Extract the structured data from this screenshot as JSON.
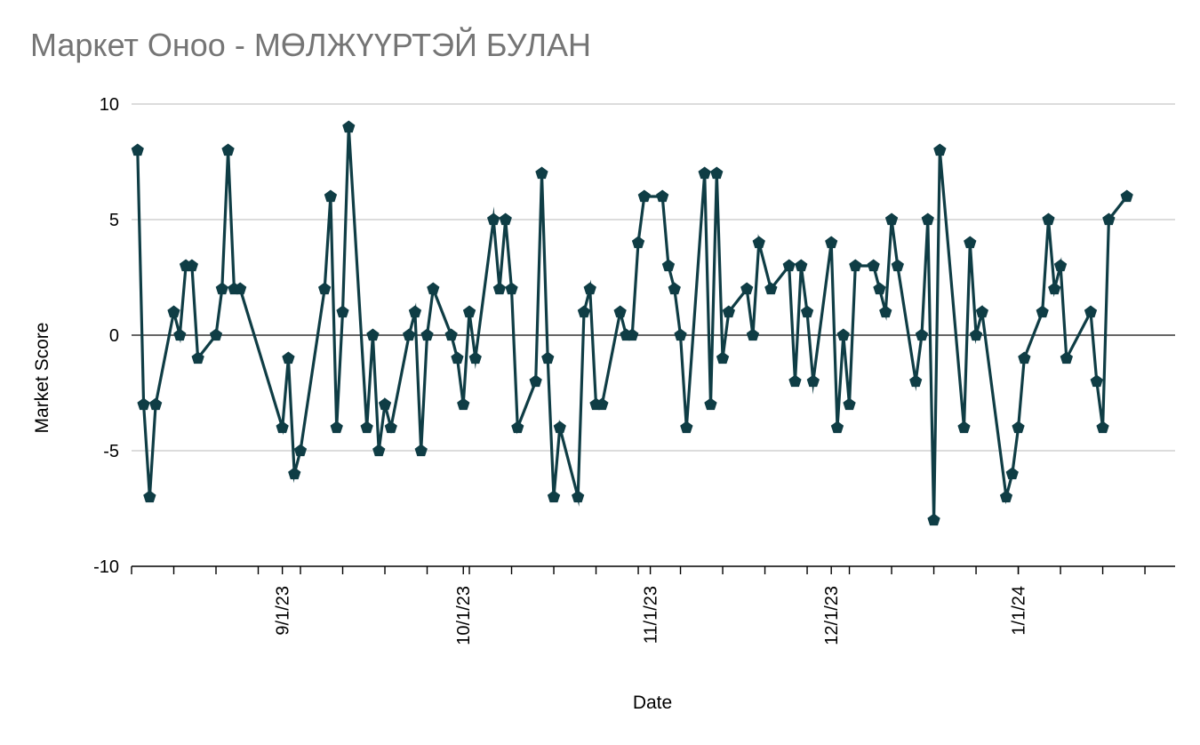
{
  "chart_data": {
    "type": "line",
    "title": "Маркет Оноо - МӨЛЖҮҮРТЭЙ БУЛАН",
    "xlabel": "Date",
    "ylabel": "Market Score",
    "ylim": [
      -10,
      10
    ],
    "yticks": [
      "10",
      "5",
      "0",
      "-5",
      "-10"
    ],
    "xlim": [
      "2023-08-07",
      "2024-01-27"
    ],
    "xtick_labels": [
      {
        "date": "2023-09-01",
        "label": "9/1/23"
      },
      {
        "date": "2023-10-01",
        "label": "10/1/23"
      },
      {
        "date": "2023-11-01",
        "label": "11/1/23"
      },
      {
        "date": "2023-12-01",
        "label": "12/1/23"
      },
      {
        "date": "2024-01-01",
        "label": "1/1/24"
      }
    ],
    "grid": true,
    "series": [
      {
        "marker": "pentagon",
        "color": "#0f3d45",
        "points": [
          [
            "2023-08-08",
            8
          ],
          [
            "2023-08-09",
            -3
          ],
          [
            "2023-08-10",
            -7
          ],
          [
            "2023-08-11",
            -3
          ],
          [
            "2023-08-14",
            1
          ],
          [
            "2023-08-15",
            0
          ],
          [
            "2023-08-16",
            3
          ],
          [
            "2023-08-17",
            3
          ],
          [
            "2023-08-18",
            -1
          ],
          [
            "2023-08-21",
            0
          ],
          [
            "2023-08-22",
            2
          ],
          [
            "2023-08-23",
            8
          ],
          [
            "2023-08-24",
            2
          ],
          [
            "2023-08-25",
            2
          ],
          [
            "2023-09-01",
            -4
          ],
          [
            "2023-09-02",
            -1
          ],
          [
            "2023-09-03",
            -6
          ],
          [
            "2023-09-04",
            -5
          ],
          [
            "2023-09-08",
            2
          ],
          [
            "2023-09-09",
            6
          ],
          [
            "2023-09-10",
            -4
          ],
          [
            "2023-09-11",
            1
          ],
          [
            "2023-09-12",
            9
          ],
          [
            "2023-09-15",
            -4
          ],
          [
            "2023-09-16",
            0
          ],
          [
            "2023-09-17",
            -5
          ],
          [
            "2023-09-18",
            -3
          ],
          [
            "2023-09-19",
            -4
          ],
          [
            "2023-09-22",
            0
          ],
          [
            "2023-09-23",
            1
          ],
          [
            "2023-09-24",
            -5
          ],
          [
            "2023-09-25",
            0
          ],
          [
            "2023-09-26",
            2
          ],
          [
            "2023-09-29",
            0
          ],
          [
            "2023-09-30",
            -1
          ],
          [
            "2023-10-01",
            -3
          ],
          [
            "2023-10-02",
            1
          ],
          [
            "2023-10-03",
            -1
          ],
          [
            "2023-10-06",
            5
          ],
          [
            "2023-10-07",
            2
          ],
          [
            "2023-10-08",
            5
          ],
          [
            "2023-10-09",
            2
          ],
          [
            "2023-10-10",
            -4
          ],
          [
            "2023-10-13",
            -2
          ],
          [
            "2023-10-14",
            7
          ],
          [
            "2023-10-15",
            -1
          ],
          [
            "2023-10-16",
            -7
          ],
          [
            "2023-10-17",
            -4
          ],
          [
            "2023-10-20",
            -7
          ],
          [
            "2023-10-21",
            1
          ],
          [
            "2023-10-22",
            2
          ],
          [
            "2023-10-23",
            -3
          ],
          [
            "2023-10-24",
            -3
          ],
          [
            "2023-10-27",
            1
          ],
          [
            "2023-10-28",
            0
          ],
          [
            "2023-10-29",
            0
          ],
          [
            "2023-10-30",
            4
          ],
          [
            "2023-10-31",
            6
          ],
          [
            "2023-11-03",
            6
          ],
          [
            "2023-11-04",
            3
          ],
          [
            "2023-11-05",
            2
          ],
          [
            "2023-11-06",
            0
          ],
          [
            "2023-11-07",
            -4
          ],
          [
            "2023-11-10",
            7
          ],
          [
            "2023-11-11",
            -3
          ],
          [
            "2023-11-12",
            7
          ],
          [
            "2023-11-13",
            -1
          ],
          [
            "2023-11-14",
            1
          ],
          [
            "2023-11-17",
            2
          ],
          [
            "2023-11-18",
            0
          ],
          [
            "2023-11-19",
            4
          ],
          [
            "2023-11-21",
            2
          ],
          [
            "2023-11-24",
            3
          ],
          [
            "2023-11-25",
            -2
          ],
          [
            "2023-11-26",
            3
          ],
          [
            "2023-11-27",
            1
          ],
          [
            "2023-11-28",
            -2
          ],
          [
            "2023-12-01",
            4
          ],
          [
            "2023-12-02",
            -4
          ],
          [
            "2023-12-03",
            0
          ],
          [
            "2023-12-04",
            -3
          ],
          [
            "2023-12-05",
            3
          ],
          [
            "2023-12-08",
            3
          ],
          [
            "2023-12-09",
            2
          ],
          [
            "2023-12-10",
            1
          ],
          [
            "2023-12-11",
            5
          ],
          [
            "2023-12-12",
            3
          ],
          [
            "2023-12-15",
            -2
          ],
          [
            "2023-12-16",
            0
          ],
          [
            "2023-12-17",
            5
          ],
          [
            "2023-12-18",
            -8
          ],
          [
            "2023-12-19",
            8
          ],
          [
            "2023-12-23",
            -4
          ],
          [
            "2023-12-24",
            4
          ],
          [
            "2023-12-25",
            0
          ],
          [
            "2023-12-26",
            1
          ],
          [
            "2023-12-30",
            -7
          ],
          [
            "2023-12-31",
            -6
          ],
          [
            "2024-01-01",
            -4
          ],
          [
            "2024-01-02",
            -1
          ],
          [
            "2024-01-05",
            1
          ],
          [
            "2024-01-06",
            5
          ],
          [
            "2024-01-07",
            2
          ],
          [
            "2024-01-08",
            3
          ],
          [
            "2024-01-09",
            -1
          ],
          [
            "2024-01-13",
            1
          ],
          [
            "2024-01-14",
            -2
          ],
          [
            "2024-01-15",
            -4
          ],
          [
            "2024-01-16",
            5
          ],
          [
            "2024-01-19",
            6
          ]
        ]
      }
    ]
  }
}
